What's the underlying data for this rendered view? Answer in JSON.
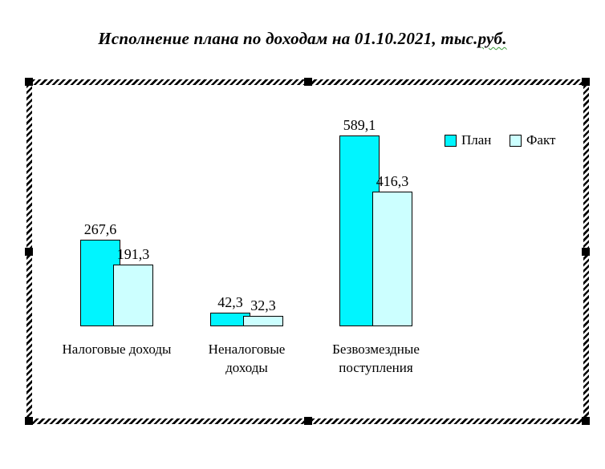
{
  "document": {
    "title_prefix": "Исполнение плана по доходам на 01.10.2021, тыс.",
    "title_spellcheck_word": "руб.",
    "spellcheck_underline_color": "#3c9b3c"
  },
  "chart_object": {
    "selected": true,
    "border_style": "hatched",
    "handle_color": "#000000",
    "handles": [
      "top-left",
      "top-center",
      "top-right",
      "middle-left",
      "middle-right",
      "bottom-left",
      "bottom-center",
      "bottom-right"
    ]
  },
  "chart_data": {
    "type": "bar",
    "title": "Исполнение плана по доходам на 01.10.2021, тыс.руб.",
    "categories": [
      "Налоговые доходы",
      "Неналоговые\nдоходы",
      "Безвозмездные\nпоступления"
    ],
    "series": [
      {
        "name": "План",
        "color": "#00F5FF",
        "values": [
          267.6,
          42.3,
          589.1
        ],
        "labels": [
          "267,6",
          "42,3",
          "589,1"
        ]
      },
      {
        "name": "Факт",
        "color": "#CCFFFF",
        "values": [
          191.3,
          32.3,
          416.3
        ],
        "labels": [
          "191,3",
          "32,3",
          "416,3"
        ]
      }
    ],
    "legend": {
      "position": "top-right",
      "entries": [
        "План",
        "Факт"
      ]
    },
    "ylim": [
      0,
      650
    ],
    "gridlines": false,
    "axes_visible": false,
    "bar_outline_color": "#000000",
    "data_labels": true
  }
}
